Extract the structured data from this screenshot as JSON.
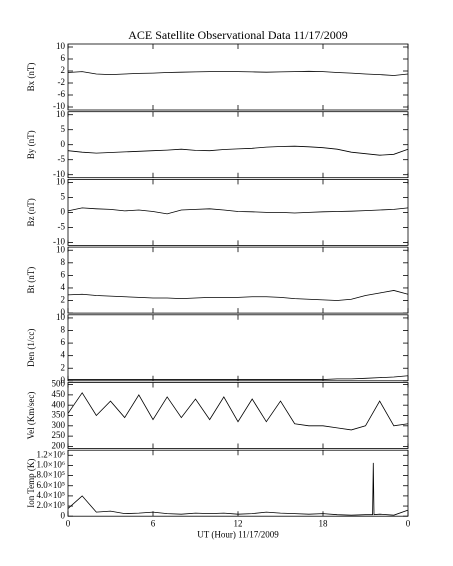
{
  "chart_data": [
    {
      "type": "line",
      "title": "ACE Satellite Observational Data   11/17/2009",
      "ylabel": "Bx (nT)",
      "x": [
        0,
        1,
        2,
        3,
        4,
        5,
        6,
        7,
        8,
        9,
        10,
        11,
        12,
        13,
        14,
        15,
        16,
        17,
        18,
        19,
        20,
        21,
        22,
        23,
        24
      ],
      "values": [
        1.5,
        1.8,
        1.0,
        0.8,
        1.0,
        1.2,
        1.3,
        1.5,
        1.6,
        1.7,
        1.8,
        1.8,
        1.8,
        1.7,
        1.6,
        1.7,
        1.8,
        1.9,
        1.8,
        1.5,
        1.3,
        1.0,
        0.8,
        0.5,
        1.0
      ],
      "xlim": [
        0,
        24
      ],
      "xticks": [
        0,
        6,
        12,
        18,
        {
          "value": 24,
          "label": "0"
        }
      ],
      "ylim": [
        -11,
        11
      ],
      "yticks": [
        -10,
        -6,
        -2,
        2,
        6,
        10
      ],
      "color": "#000000"
    },
    {
      "type": "line",
      "ylabel": "By (nT)",
      "x": [
        0,
        1,
        2,
        3,
        4,
        5,
        6,
        7,
        8,
        9,
        10,
        11,
        12,
        13,
        14,
        15,
        16,
        17,
        18,
        19,
        20,
        21,
        22,
        23,
        24
      ],
      "values": [
        -2.0,
        -2.5,
        -2.8,
        -2.6,
        -2.4,
        -2.2,
        -2.0,
        -1.8,
        -1.5,
        -1.9,
        -2.0,
        -1.6,
        -1.4,
        -1.2,
        -0.8,
        -0.6,
        -0.5,
        -0.7,
        -1.0,
        -1.5,
        -2.5,
        -3.0,
        -3.5,
        -3.2,
        -1.5
      ],
      "xlim": [
        0,
        24
      ],
      "xticks": [
        0,
        6,
        12,
        18,
        {
          "value": 24,
          "label": "0"
        }
      ],
      "ylim": [
        -11,
        11
      ],
      "yticks": [
        -10,
        -5,
        0,
        5,
        10
      ],
      "color": "#000000"
    },
    {
      "type": "line",
      "ylabel": "Bz (nT)",
      "x": [
        0,
        1,
        2,
        3,
        4,
        5,
        6,
        7,
        8,
        9,
        10,
        11,
        12,
        13,
        14,
        15,
        16,
        17,
        18,
        19,
        20,
        21,
        22,
        23,
        24
      ],
      "values": [
        0.5,
        1.5,
        1.2,
        1.0,
        0.5,
        0.8,
        0.3,
        -0.5,
        0.8,
        1.0,
        1.2,
        0.8,
        0.3,
        0.2,
        0.0,
        0.0,
        -0.2,
        0.0,
        0.2,
        0.3,
        0.4,
        0.6,
        0.8,
        1.0,
        1.5
      ],
      "xlim": [
        0,
        24
      ],
      "xticks": [
        0,
        6,
        12,
        18,
        {
          "value": 24,
          "label": "0"
        }
      ],
      "ylim": [
        -11,
        11
      ],
      "yticks": [
        -10,
        -5,
        0,
        5,
        10
      ],
      "color": "#000000"
    },
    {
      "type": "line",
      "ylabel": "Bt (nT)",
      "x": [
        0,
        1,
        2,
        3,
        4,
        5,
        6,
        7,
        8,
        9,
        10,
        11,
        12,
        13,
        14,
        15,
        16,
        17,
        18,
        19,
        20,
        21,
        22,
        23,
        24
      ],
      "values": [
        2.9,
        3.0,
        2.8,
        2.7,
        2.6,
        2.5,
        2.4,
        2.4,
        2.3,
        2.4,
        2.5,
        2.5,
        2.5,
        2.6,
        2.6,
        2.5,
        2.3,
        2.2,
        2.1,
        2.0,
        2.2,
        2.8,
        3.2,
        3.6,
        3.0
      ],
      "xlim": [
        0,
        24
      ],
      "xticks": [
        0,
        6,
        12,
        18,
        {
          "value": 24,
          "label": "0"
        }
      ],
      "ylim": [
        0,
        10.5
      ],
      "yticks": [
        0,
        2,
        4,
        6,
        8,
        10
      ],
      "color": "#000000"
    },
    {
      "type": "line",
      "ylabel": "Den (1/cc)",
      "x": [
        0,
        1,
        2,
        3,
        4,
        5,
        6,
        7,
        8,
        9,
        10,
        11,
        12,
        13,
        14,
        15,
        16,
        17,
        18,
        19,
        20,
        21,
        22,
        23,
        24
      ],
      "values": [
        0.2,
        0.2,
        0.2,
        0.2,
        0.2,
        0.2,
        0.2,
        0.2,
        0.2,
        0.2,
        0.2,
        0.2,
        0.2,
        0.2,
        0.2,
        0.2,
        0.2,
        0.2,
        0.2,
        0.3,
        0.3,
        0.4,
        0.5,
        0.6,
        0.8
      ],
      "xlim": [
        0,
        24
      ],
      "xticks": [
        0,
        6,
        12,
        18,
        {
          "value": 24,
          "label": "0"
        }
      ],
      "ylim": [
        0,
        10.5
      ],
      "yticks": [
        0,
        2,
        4,
        6,
        8,
        10
      ],
      "color": "#000000"
    },
    {
      "type": "line",
      "ylabel": "Vel (Km/sec)",
      "x": [
        0,
        1,
        2,
        3,
        4,
        5,
        6,
        7,
        8,
        9,
        10,
        11,
        12,
        13,
        14,
        15,
        16,
        17,
        18,
        19,
        20,
        21,
        22,
        23,
        24
      ],
      "values": [
        360,
        460,
        350,
        420,
        340,
        450,
        330,
        440,
        340,
        430,
        330,
        440,
        320,
        430,
        320,
        420,
        310,
        300,
        300,
        290,
        280,
        300,
        420,
        300,
        310
      ],
      "xlim": [
        0,
        24
      ],
      "xticks": [
        0,
        6,
        12,
        18,
        {
          "value": 24,
          "label": "0"
        }
      ],
      "ylim": [
        190,
        510
      ],
      "yticks": [
        200,
        250,
        300,
        350,
        400,
        450,
        500
      ],
      "color": "#000000"
    },
    {
      "type": "line",
      "ylabel": "Ion Temp (K)",
      "xlabel": "UT (Hour)  11/17/2009",
      "x": [
        0,
        1,
        2,
        3,
        4,
        5,
        6,
        7,
        8,
        9,
        10,
        11,
        12,
        13,
        14,
        15,
        16,
        17,
        18,
        19,
        20,
        21,
        21.5,
        21.55,
        21.6,
        22,
        23,
        24
      ],
      "values": [
        150000,
        400000,
        80000,
        100000,
        50000,
        60000,
        80000,
        50000,
        40000,
        60000,
        50000,
        60000,
        40000,
        50000,
        80000,
        60000,
        50000,
        40000,
        50000,
        30000,
        20000,
        30000,
        30000,
        1050000,
        30000,
        40000,
        20000,
        120000
      ],
      "xlim": [
        0,
        24
      ],
      "xticks": [
        0,
        6,
        12,
        18,
        {
          "value": 24,
          "label": "0"
        }
      ],
      "ylim": [
        0,
        1300000
      ],
      "yticks": [
        0,
        {
          "value": 200000,
          "label": "2.0×10⁵"
        },
        {
          "value": 400000,
          "label": "4.0×10⁵"
        },
        {
          "value": 600000,
          "label": "6.0×10⁵"
        },
        {
          "value": 800000,
          "label": "8.0×10⁵"
        },
        {
          "value": 1000000,
          "label": "1.0×10⁶"
        },
        {
          "value": 1200000,
          "label": "1.2×10⁶"
        }
      ],
      "color": "#000000"
    }
  ]
}
